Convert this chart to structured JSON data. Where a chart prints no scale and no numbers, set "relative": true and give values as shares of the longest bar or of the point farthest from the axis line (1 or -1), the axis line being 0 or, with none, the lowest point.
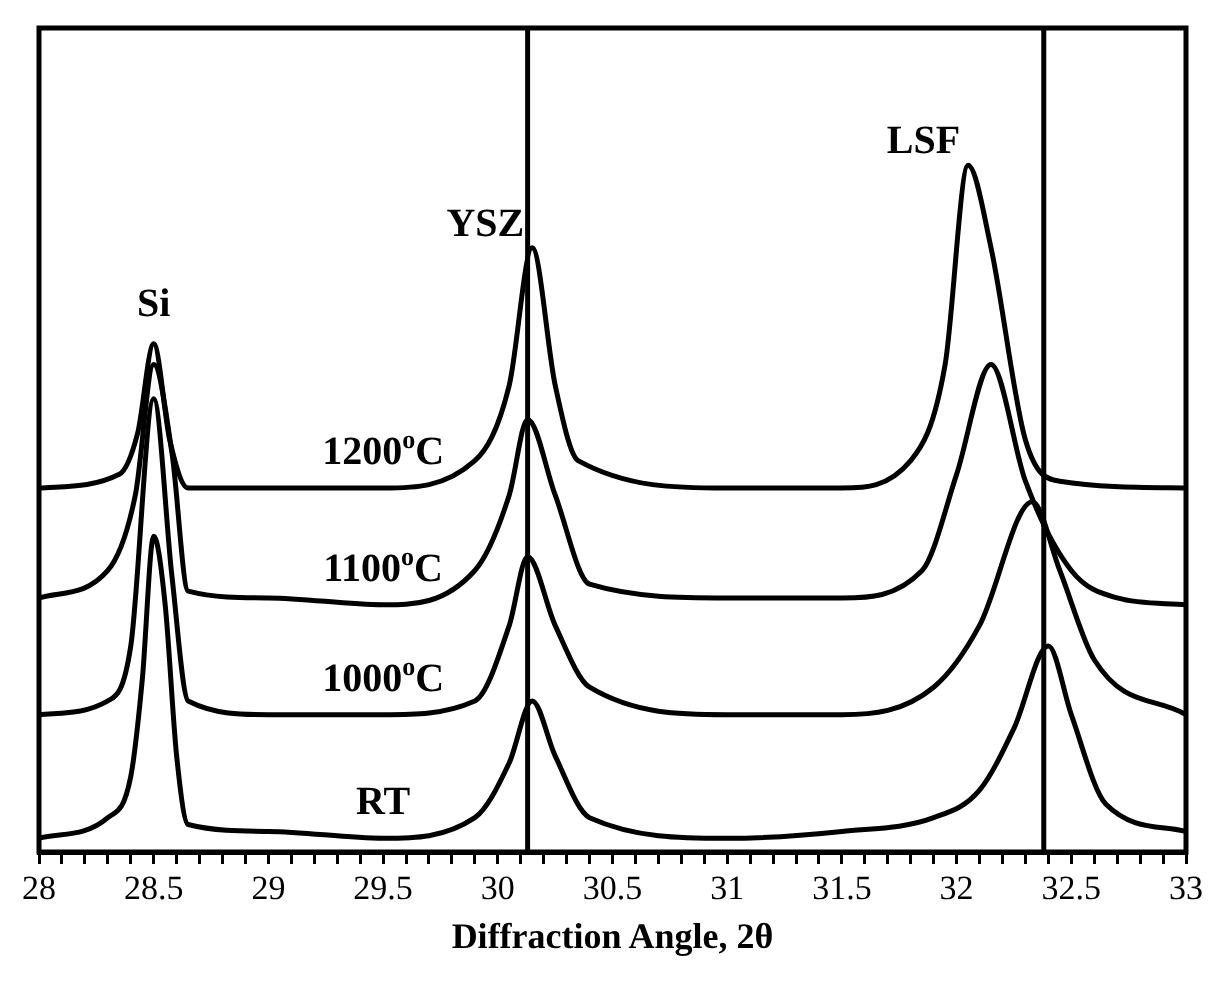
{
  "chart_data": {
    "type": "line",
    "xlabel": "Diffraction Angle, 2θ",
    "relative": true,
    "grid": false,
    "legend": false,
    "marker": "none",
    "line_style": "solid",
    "xlim": [
      28,
      33
    ],
    "xticks": [
      28,
      {
        "value": 28.1,
        "label": null
      },
      {
        "value": 28.2,
        "label": null
      },
      {
        "value": 28.3,
        "label": null
      },
      {
        "value": 28.4,
        "label": null
      },
      28.5,
      {
        "value": 28.6,
        "label": null
      },
      {
        "value": 28.7,
        "label": null
      },
      {
        "value": 28.8,
        "label": null
      },
      {
        "value": 28.9,
        "label": null
      },
      29,
      {
        "value": 29.1,
        "label": null
      },
      {
        "value": 29.2,
        "label": null
      },
      {
        "value": 29.3,
        "label": null
      },
      {
        "value": 29.4,
        "label": null
      },
      29.5,
      {
        "value": 29.6,
        "label": null
      },
      {
        "value": 29.7,
        "label": null
      },
      {
        "value": 29.8,
        "label": null
      },
      {
        "value": 29.9,
        "label": null
      },
      30,
      {
        "value": 30.1,
        "label": null
      },
      {
        "value": 30.2,
        "label": null
      },
      {
        "value": 30.3,
        "label": null
      },
      {
        "value": 30.4,
        "label": null
      },
      30.5,
      {
        "value": 30.6,
        "label": null
      },
      {
        "value": 30.7,
        "label": null
      },
      {
        "value": 30.8,
        "label": null
      },
      {
        "value": 30.9,
        "label": null
      },
      31,
      {
        "value": 31.1,
        "label": null
      },
      {
        "value": 31.2,
        "label": null
      },
      {
        "value": 31.3,
        "label": null
      },
      {
        "value": 31.4,
        "label": null
      },
      31.5,
      {
        "value": 31.6,
        "label": null
      },
      {
        "value": 31.7,
        "label": null
      },
      {
        "value": 31.8,
        "label": null
      },
      {
        "value": 31.9,
        "label": null
      },
      32,
      {
        "value": 32.1,
        "label": null
      },
      {
        "value": 32.2,
        "label": null
      },
      {
        "value": 32.3,
        "label": null
      },
      {
        "value": 32.4,
        "label": null
      },
      32.5,
      {
        "value": 32.6,
        "label": null
      },
      {
        "value": 32.7,
        "label": null
      },
      {
        "value": 32.8,
        "label": null
      },
      {
        "value": 32.9,
        "label": null
      },
      33
    ],
    "series": [
      {
        "name": "RT",
        "color": "#000000",
        "x": [
          28,
          28.3,
          28.4,
          28.45,
          28.5,
          28.55,
          28.6,
          28.65,
          29,
          29.5,
          29.9,
          30.05,
          30.15,
          30.25,
          30.4,
          31,
          31.5,
          31.9,
          32.1,
          32.25,
          32.4,
          32.5,
          32.65,
          33
        ],
        "values": [
          0.02,
          0.05,
          0.11,
          0.25,
          0.46,
          0.36,
          0.14,
          0.04,
          0.03,
          0.02,
          0.05,
          0.13,
          0.22,
          0.14,
          0.05,
          0.02,
          0.03,
          0.05,
          0.09,
          0.18,
          0.3,
          0.2,
          0.07,
          0.03
        ]
      },
      {
        "name": "1000$^{o}$C",
        "color": "#000000",
        "x": [
          28,
          28.3,
          28.4,
          28.5,
          28.58,
          28.65,
          29,
          29.5,
          29.9,
          30.05,
          30.13,
          30.25,
          30.4,
          31,
          31.5,
          31.9,
          32.1,
          32.33,
          32.45,
          32.6,
          33
        ],
        "values": [
          0.2,
          0.22,
          0.3,
          0.66,
          0.4,
          0.22,
          0.2,
          0.2,
          0.22,
          0.33,
          0.43,
          0.33,
          0.24,
          0.2,
          0.2,
          0.24,
          0.33,
          0.51,
          0.41,
          0.28,
          0.2
        ]
      },
      {
        "name": "1100$^{o}$C",
        "color": "#000000",
        "x": [
          28,
          28.3,
          28.42,
          28.5,
          28.58,
          28.65,
          29,
          29.5,
          29.9,
          30.05,
          30.13,
          30.25,
          30.4,
          31,
          31.5,
          31.85,
          32,
          32.15,
          32.3,
          32.5,
          32.7,
          33
        ],
        "values": [
          0.37,
          0.41,
          0.52,
          0.71,
          0.58,
          0.38,
          0.37,
          0.36,
          0.41,
          0.52,
          0.63,
          0.52,
          0.39,
          0.37,
          0.37,
          0.41,
          0.55,
          0.71,
          0.54,
          0.41,
          0.37,
          0.36
        ]
      },
      {
        "name": "1200$^{o}$C",
        "color": "#000000",
        "x": [
          28,
          28.35,
          28.43,
          28.5,
          28.57,
          28.65,
          29,
          29.5,
          29.9,
          30.05,
          30.15,
          30.25,
          30.35,
          31,
          31.5,
          31.8,
          31.95,
          32.05,
          32.15,
          32.3,
          32.45,
          33
        ],
        "values": [
          0.53,
          0.55,
          0.61,
          0.74,
          0.6,
          0.53,
          0.53,
          0.53,
          0.57,
          0.68,
          0.88,
          0.68,
          0.57,
          0.53,
          0.53,
          0.57,
          0.71,
          1,
          0.88,
          0.6,
          0.54,
          0.53
        ]
      }
    ],
    "ref_lines": [
      {
        "axis": "x",
        "value": 30.13,
        "color": "#000000"
      },
      {
        "axis": "x",
        "value": 32.38,
        "color": "#000000"
      }
    ],
    "annotations": [
      "Si",
      "YSZ",
      "LSF"
    ]
  }
}
